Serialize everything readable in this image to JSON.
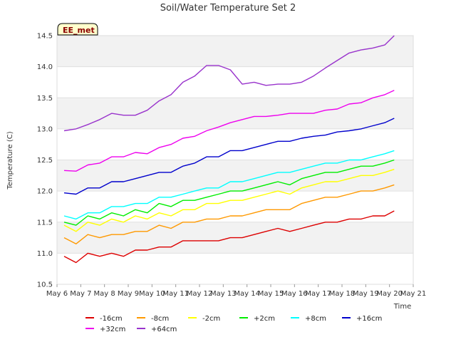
{
  "chart_data": {
    "type": "line",
    "title": "Soil/Water Temperature Set 2",
    "xlabel": "Time",
    "ylabel": "Temperature (C)",
    "badge": "EE_met",
    "ylim": [
      10.5,
      14.5
    ],
    "xlim": [
      6,
      21
    ],
    "y_ticks": [
      10.5,
      11.0,
      11.5,
      12.0,
      12.5,
      13.0,
      13.5,
      14.0,
      14.5
    ],
    "y_tick_labels": [
      "10.5",
      "11.0",
      "11.5",
      "12.0",
      "12.5",
      "13.0",
      "13.5",
      "14.0",
      "14.5"
    ],
    "x_ticks": [
      6,
      7,
      8,
      9,
      10,
      11,
      12,
      13,
      14,
      15,
      16,
      17,
      18,
      19,
      20,
      21
    ],
    "x_tick_labels": [
      "May 6",
      "May 7",
      "May 8",
      "May 9",
      "May 10",
      "May 11",
      "May 12",
      "May 13",
      "May 14",
      "May 15",
      "May 16",
      "May 17",
      "May 18",
      "May 19",
      "May 20",
      "May 21"
    ],
    "grid": true,
    "x": [
      6.3,
      6.8,
      7.3,
      7.8,
      8.3,
      8.8,
      9.3,
      9.8,
      10.3,
      10.8,
      11.3,
      11.8,
      12.3,
      12.8,
      13.3,
      13.8,
      14.3,
      14.8,
      15.3,
      15.8,
      16.3,
      16.8,
      17.3,
      17.8,
      18.3,
      18.8,
      19.3,
      19.8,
      20.2
    ],
    "series": [
      {
        "name": "-16cm",
        "color": "#dd0000",
        "values": [
          10.95,
          10.85,
          11.0,
          10.95,
          11.0,
          10.95,
          11.05,
          11.05,
          11.1,
          11.1,
          11.2,
          11.2,
          11.2,
          11.2,
          11.25,
          11.25,
          11.3,
          11.35,
          11.4,
          11.35,
          11.4,
          11.45,
          11.5,
          11.5,
          11.55,
          11.55,
          11.6,
          11.6,
          11.68
        ]
      },
      {
        "name": "-8cm",
        "color": "#ff9900",
        "values": [
          11.25,
          11.15,
          11.3,
          11.25,
          11.3,
          11.3,
          11.35,
          11.35,
          11.45,
          11.4,
          11.5,
          11.5,
          11.55,
          11.55,
          11.6,
          11.6,
          11.65,
          11.7,
          11.7,
          11.7,
          11.8,
          11.85,
          11.9,
          11.9,
          11.95,
          12.0,
          12.0,
          12.05,
          12.1
        ]
      },
      {
        "name": "-2cm",
        "color": "#ffff00",
        "values": [
          11.45,
          11.35,
          11.5,
          11.45,
          11.55,
          11.5,
          11.6,
          11.55,
          11.65,
          11.6,
          11.7,
          11.7,
          11.8,
          11.8,
          11.85,
          11.85,
          11.9,
          11.95,
          12.0,
          11.95,
          12.05,
          12.1,
          12.15,
          12.15,
          12.2,
          12.25,
          12.25,
          12.3,
          12.35
        ]
      },
      {
        "name": "+2cm",
        "color": "#00ee00",
        "values": [
          11.5,
          11.45,
          11.6,
          11.55,
          11.65,
          11.6,
          11.7,
          11.65,
          11.8,
          11.75,
          11.85,
          11.85,
          11.9,
          11.95,
          12.0,
          12.0,
          12.05,
          12.1,
          12.15,
          12.1,
          12.2,
          12.25,
          12.3,
          12.3,
          12.35,
          12.4,
          12.4,
          12.45,
          12.5
        ]
      },
      {
        "name": "+8cm",
        "color": "#00ffff",
        "values": [
          11.6,
          11.55,
          11.65,
          11.65,
          11.75,
          11.75,
          11.8,
          11.8,
          11.9,
          11.9,
          11.95,
          12.0,
          12.05,
          12.05,
          12.15,
          12.15,
          12.2,
          12.25,
          12.3,
          12.3,
          12.35,
          12.4,
          12.45,
          12.45,
          12.5,
          12.5,
          12.55,
          12.6,
          12.65
        ]
      },
      {
        "name": "+16cm",
        "color": "#0000cc",
        "values": [
          11.97,
          11.95,
          12.05,
          12.05,
          12.15,
          12.15,
          12.2,
          12.25,
          12.3,
          12.3,
          12.4,
          12.45,
          12.55,
          12.55,
          12.65,
          12.65,
          12.7,
          12.75,
          12.8,
          12.8,
          12.85,
          12.88,
          12.9,
          12.95,
          12.97,
          13.0,
          13.05,
          13.1,
          13.17
        ]
      },
      {
        "name": "+32cm",
        "color": "#ee00ee",
        "values": [
          12.33,
          12.32,
          12.42,
          12.45,
          12.55,
          12.55,
          12.62,
          12.6,
          12.7,
          12.75,
          12.85,
          12.88,
          12.97,
          13.03,
          13.1,
          13.15,
          13.2,
          13.2,
          13.22,
          13.25,
          13.25,
          13.25,
          13.3,
          13.32,
          13.4,
          13.42,
          13.5,
          13.55,
          13.62
        ]
      },
      {
        "name": "+64cm",
        "color": "#9933cc",
        "values": [
          12.97,
          13.0,
          13.07,
          13.15,
          13.25,
          13.22,
          13.22,
          13.3,
          13.45,
          13.55,
          13.75,
          13.85,
          14.02,
          14.02,
          13.95,
          13.72,
          13.75,
          13.7,
          13.72,
          13.72,
          13.75,
          13.85,
          13.98,
          14.1,
          14.22,
          14.27,
          14.3,
          14.35,
          14.5
        ]
      }
    ]
  }
}
